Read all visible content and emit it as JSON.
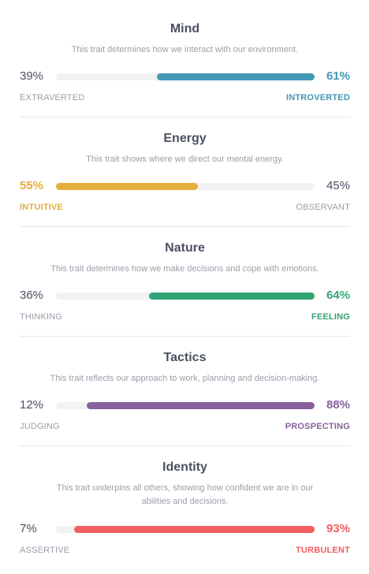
{
  "colors": {
    "mind": "#4298b4",
    "energy": "#e4ae3a",
    "nature": "#33a474",
    "tactics": "#88619a",
    "identity": "#f25e62",
    "neutral_text": "#4b5161",
    "muted_text": "#9a9ea8"
  },
  "traits": [
    {
      "title": "Mind",
      "description": "This trait determines how we interact with our environment.",
      "left_percent": "39%",
      "right_percent": "61%",
      "left_label": "EXTRAVERTED",
      "right_label": "INTROVERTED",
      "dominant": "right",
      "dominant_value": 61
    },
    {
      "title": "Energy",
      "description": "This trait shows where we direct our mental energy.",
      "left_percent": "55%",
      "right_percent": "45%",
      "left_label": "INTUITIVE",
      "right_label": "OBSERVANT",
      "dominant": "left",
      "dominant_value": 55
    },
    {
      "title": "Nature",
      "description": "This trait determines how we make decisions and cope with emotions.",
      "left_percent": "36%",
      "right_percent": "64%",
      "left_label": "THINKING",
      "right_label": "FEELING",
      "dominant": "right",
      "dominant_value": 64
    },
    {
      "title": "Tactics",
      "description": "This trait reflects our approach to work, planning and decision-making.",
      "left_percent": "12%",
      "right_percent": "88%",
      "left_label": "JUDGING",
      "right_label": "PROSPECTING",
      "dominant": "right",
      "dominant_value": 88
    },
    {
      "title": "Identity",
      "description_line1": "This trait underpins all others, showing how confident we are in our",
      "description_line2": "abilities and decisions.",
      "left_percent": "7%",
      "right_percent": "93%",
      "left_label": "ASSERTIVE",
      "right_label": "TURBULENT",
      "dominant": "right",
      "dominant_value": 93
    }
  ]
}
